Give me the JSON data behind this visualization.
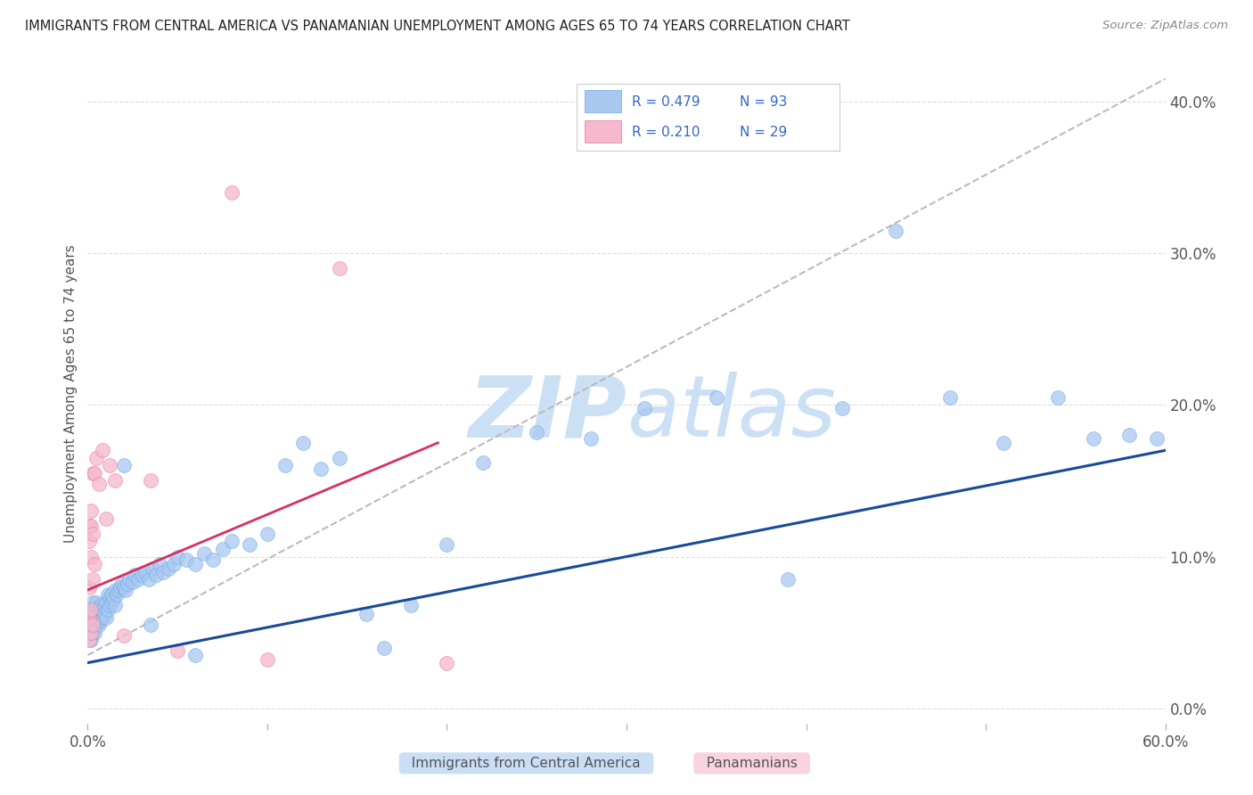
{
  "title": "IMMIGRANTS FROM CENTRAL AMERICA VS PANAMANIAN UNEMPLOYMENT AMONG AGES 65 TO 74 YEARS CORRELATION CHART",
  "source": "Source: ZipAtlas.com",
  "xlabel_blue": "Immigrants from Central America",
  "xlabel_pink": "Panamanians",
  "ylabel": "Unemployment Among Ages 65 to 74 years",
  "R_blue": 0.479,
  "N_blue": 93,
  "R_pink": 0.21,
  "N_pink": 29,
  "xlim": [
    0.0,
    0.6
  ],
  "ylim": [
    -0.01,
    0.425
  ],
  "xticks": [
    0.0,
    0.6
  ],
  "xtick_labels": [
    "0.0%",
    "60.0%"
  ],
  "yticks": [
    0.0,
    0.1,
    0.2,
    0.3,
    0.4
  ],
  "ytick_labels": [
    "0.0%",
    "10.0%",
    "20.0%",
    "30.0%",
    "40.0%"
  ],
  "blue_color": "#a8c8f0",
  "blue_edge_color": "#6aaae8",
  "blue_line_color": "#1a4a9a",
  "pink_color": "#f5b8cc",
  "pink_edge_color": "#e87898",
  "pink_line_color": "#d83060",
  "dashed_line_color": "#bbbbbb",
  "watermark_color": "#cce0f5",
  "background_color": "#ffffff",
  "legend_text_color": "#3366cc",
  "legend_n_color": "#cc0000",
  "blue_line_x": [
    0.0,
    0.6
  ],
  "blue_line_y": [
    0.03,
    0.17
  ],
  "pink_line_x": [
    0.0,
    0.195
  ],
  "pink_line_y": [
    0.078,
    0.175
  ],
  "dashed_line_x": [
    0.0,
    0.6
  ],
  "dashed_line_y": [
    0.035,
    0.415
  ],
  "blue_scatter_x": [
    0.001,
    0.001,
    0.001,
    0.002,
    0.002,
    0.002,
    0.002,
    0.003,
    0.003,
    0.003,
    0.003,
    0.004,
    0.004,
    0.004,
    0.004,
    0.005,
    0.005,
    0.005,
    0.006,
    0.006,
    0.006,
    0.007,
    0.007,
    0.007,
    0.008,
    0.008,
    0.009,
    0.009,
    0.01,
    0.01,
    0.011,
    0.011,
    0.012,
    0.012,
    0.013,
    0.013,
    0.014,
    0.015,
    0.015,
    0.016,
    0.017,
    0.018,
    0.019,
    0.02,
    0.021,
    0.022,
    0.023,
    0.025,
    0.026,
    0.028,
    0.03,
    0.032,
    0.034,
    0.036,
    0.038,
    0.04,
    0.042,
    0.045,
    0.048,
    0.05,
    0.055,
    0.06,
    0.065,
    0.07,
    0.075,
    0.08,
    0.09,
    0.1,
    0.11,
    0.12,
    0.13,
    0.14,
    0.155,
    0.165,
    0.18,
    0.2,
    0.22,
    0.25,
    0.28,
    0.31,
    0.35,
    0.39,
    0.42,
    0.45,
    0.48,
    0.51,
    0.54,
    0.56,
    0.58,
    0.595,
    0.02,
    0.035,
    0.06
  ],
  "blue_scatter_y": [
    0.05,
    0.055,
    0.06,
    0.045,
    0.055,
    0.06,
    0.065,
    0.05,
    0.055,
    0.065,
    0.07,
    0.05,
    0.055,
    0.06,
    0.065,
    0.055,
    0.06,
    0.07,
    0.055,
    0.06,
    0.065,
    0.058,
    0.063,
    0.068,
    0.06,
    0.065,
    0.062,
    0.068,
    0.06,
    0.07,
    0.065,
    0.075,
    0.068,
    0.073,
    0.07,
    0.075,
    0.072,
    0.068,
    0.078,
    0.075,
    0.078,
    0.08,
    0.082,
    0.08,
    0.078,
    0.082,
    0.085,
    0.083,
    0.088,
    0.085,
    0.088,
    0.09,
    0.085,
    0.092,
    0.088,
    0.095,
    0.09,
    0.092,
    0.095,
    0.1,
    0.098,
    0.095,
    0.102,
    0.098,
    0.105,
    0.11,
    0.108,
    0.115,
    0.16,
    0.175,
    0.158,
    0.165,
    0.062,
    0.04,
    0.068,
    0.108,
    0.162,
    0.182,
    0.178,
    0.198,
    0.205,
    0.085,
    0.198,
    0.315,
    0.205,
    0.175,
    0.205,
    0.178,
    0.18,
    0.178,
    0.16,
    0.055,
    0.035
  ],
  "pink_scatter_x": [
    0.001,
    0.001,
    0.001,
    0.001,
    0.001,
    0.002,
    0.002,
    0.002,
    0.002,
    0.002,
    0.003,
    0.003,
    0.003,
    0.003,
    0.004,
    0.004,
    0.005,
    0.006,
    0.008,
    0.01,
    0.012,
    0.015,
    0.02,
    0.035,
    0.05,
    0.08,
    0.1,
    0.14,
    0.2
  ],
  "pink_scatter_y": [
    0.045,
    0.06,
    0.08,
    0.11,
    0.12,
    0.05,
    0.065,
    0.1,
    0.12,
    0.13,
    0.055,
    0.085,
    0.115,
    0.155,
    0.095,
    0.155,
    0.165,
    0.148,
    0.17,
    0.125,
    0.16,
    0.15,
    0.048,
    0.15,
    0.038,
    0.34,
    0.032,
    0.29,
    0.03
  ]
}
